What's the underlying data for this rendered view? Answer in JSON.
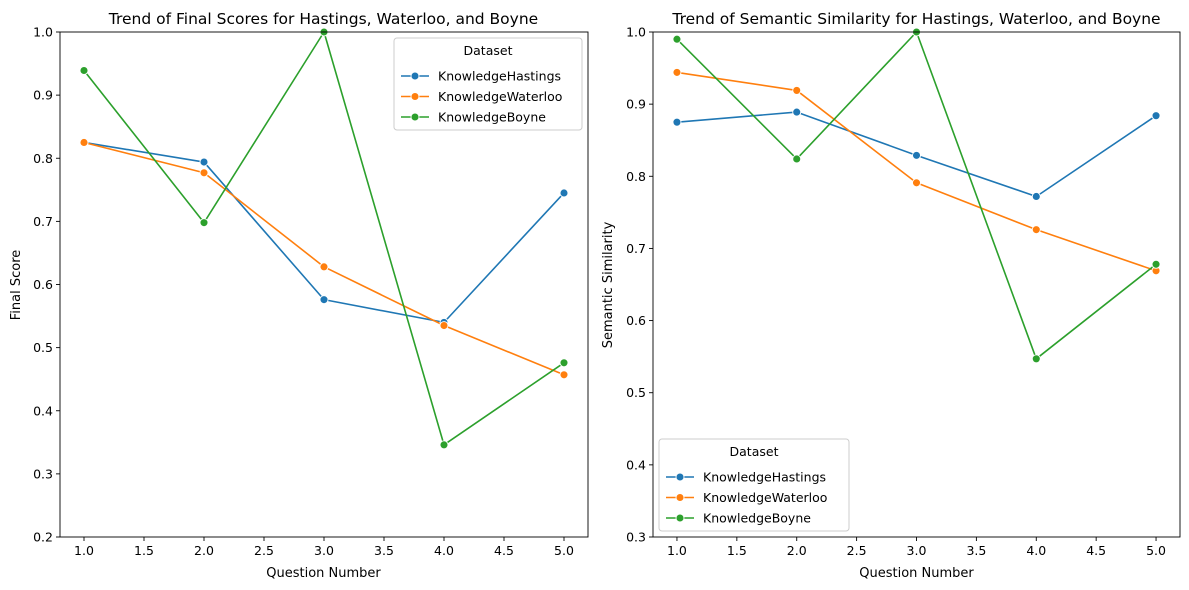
{
  "chart_data": [
    {
      "type": "line",
      "title": "Trend of Final Scores for Hastings, Waterloo, and Boyne",
      "xlabel": "Question Number",
      "ylabel": "Final Score",
      "xlim": [
        0.8,
        5.2
      ],
      "ylim": [
        0.2,
        1.0
      ],
      "xticks": [
        1.0,
        1.5,
        2.0,
        2.5,
        3.0,
        3.5,
        4.0,
        4.5,
        5.0
      ],
      "xtick_labels": [
        "1.0",
        "1.5",
        "2.0",
        "2.5",
        "3.0",
        "3.5",
        "4.0",
        "4.5",
        "5.0"
      ],
      "yticks": [
        0.2,
        0.3,
        0.4,
        0.5,
        0.6,
        0.7,
        0.8,
        0.9,
        1.0
      ],
      "ytick_labels": [
        "0.2",
        "0.3",
        "0.4",
        "0.5",
        "0.6",
        "0.7",
        "0.8",
        "0.9",
        "1.0"
      ],
      "grid": false,
      "legend": {
        "title": "Dataset",
        "placement": "top-right"
      },
      "x": [
        1,
        2,
        3,
        4,
        5
      ],
      "series": [
        {
          "name": "KnowledgeHastings",
          "color": "#1f77b4",
          "values": [
            0.825,
            0.794,
            0.576,
            0.54,
            0.745
          ]
        },
        {
          "name": "KnowledgeWaterloo",
          "color": "#ff7f0e",
          "values": [
            0.825,
            0.777,
            0.628,
            0.535,
            0.457
          ]
        },
        {
          "name": "KnowledgeBoyne",
          "color": "#2ca02c",
          "values": [
            0.939,
            0.698,
            1.0,
            0.346,
            0.476
          ]
        }
      ]
    },
    {
      "type": "line",
      "title": "Trend of Semantic Similarity for Hastings, Waterloo, and Boyne",
      "xlabel": "Question Number",
      "ylabel": "Semantic Similarity",
      "xlim": [
        0.8,
        5.2
      ],
      "ylim": [
        0.3,
        1.0
      ],
      "xticks": [
        1.0,
        1.5,
        2.0,
        2.5,
        3.0,
        3.5,
        4.0,
        4.5,
        5.0
      ],
      "xtick_labels": [
        "1.0",
        "1.5",
        "2.0",
        "2.5",
        "3.0",
        "3.5",
        "4.0",
        "4.5",
        "5.0"
      ],
      "yticks": [
        0.3,
        0.4,
        0.5,
        0.6,
        0.7,
        0.8,
        0.9,
        1.0
      ],
      "ytick_labels": [
        "0.3",
        "0.4",
        "0.5",
        "0.6",
        "0.7",
        "0.8",
        "0.9",
        "1.0"
      ],
      "grid": false,
      "legend": {
        "title": "Dataset",
        "placement": "bottom-left"
      },
      "x": [
        1,
        2,
        3,
        4,
        5
      ],
      "series": [
        {
          "name": "KnowledgeHastings",
          "color": "#1f77b4",
          "values": [
            0.875,
            0.889,
            0.829,
            0.772,
            0.884
          ]
        },
        {
          "name": "KnowledgeWaterloo",
          "color": "#ff7f0e",
          "values": [
            0.944,
            0.919,
            0.791,
            0.726,
            0.669
          ]
        },
        {
          "name": "KnowledgeBoyne",
          "color": "#2ca02c",
          "values": [
            0.99,
            0.824,
            1.0,
            0.547,
            0.678
          ]
        }
      ]
    }
  ]
}
